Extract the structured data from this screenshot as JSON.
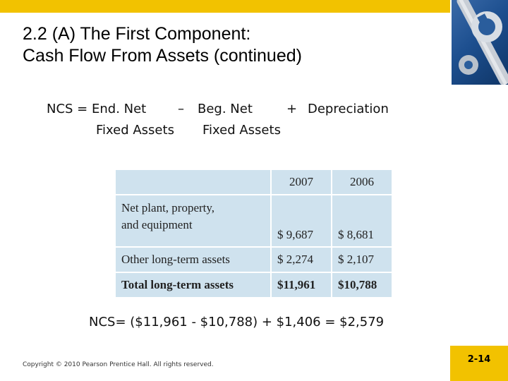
{
  "slide": {
    "title_line1": "2.2 (A)  The First Component:",
    "title_line2": "Cash Flow From Assets (continued)",
    "accent_color": "#f2c200",
    "corner_image_icon": "wrench-icon"
  },
  "formula": {
    "lhs": "NCS = End. Net",
    "minus": "–",
    "beg": "Beg. Net",
    "plus": "+",
    "dep": "Depreciation",
    "end_line2": "Fixed Assets",
    "beg_line2": "Fixed Assets"
  },
  "table": {
    "years": [
      "2007",
      "2006"
    ],
    "rows": [
      {
        "label_line1": "Net plant, property,",
        "label_line2": "and equipment",
        "values": [
          "$  9,687",
          "$  8,681"
        ]
      },
      {
        "label": "Other long-term assets",
        "values": [
          "$  2,274",
          "$  2,107"
        ]
      }
    ],
    "total": {
      "label": "Total long-term assets",
      "values": [
        "$11,961",
        "$10,788"
      ]
    }
  },
  "result": "NCS= ($11,961 - $10,788) + $1,406 = $2,579",
  "footer": {
    "copyright": "Copyright © 2010 Pearson Prentice Hall. All rights reserved.",
    "page_number": "2-14"
  }
}
